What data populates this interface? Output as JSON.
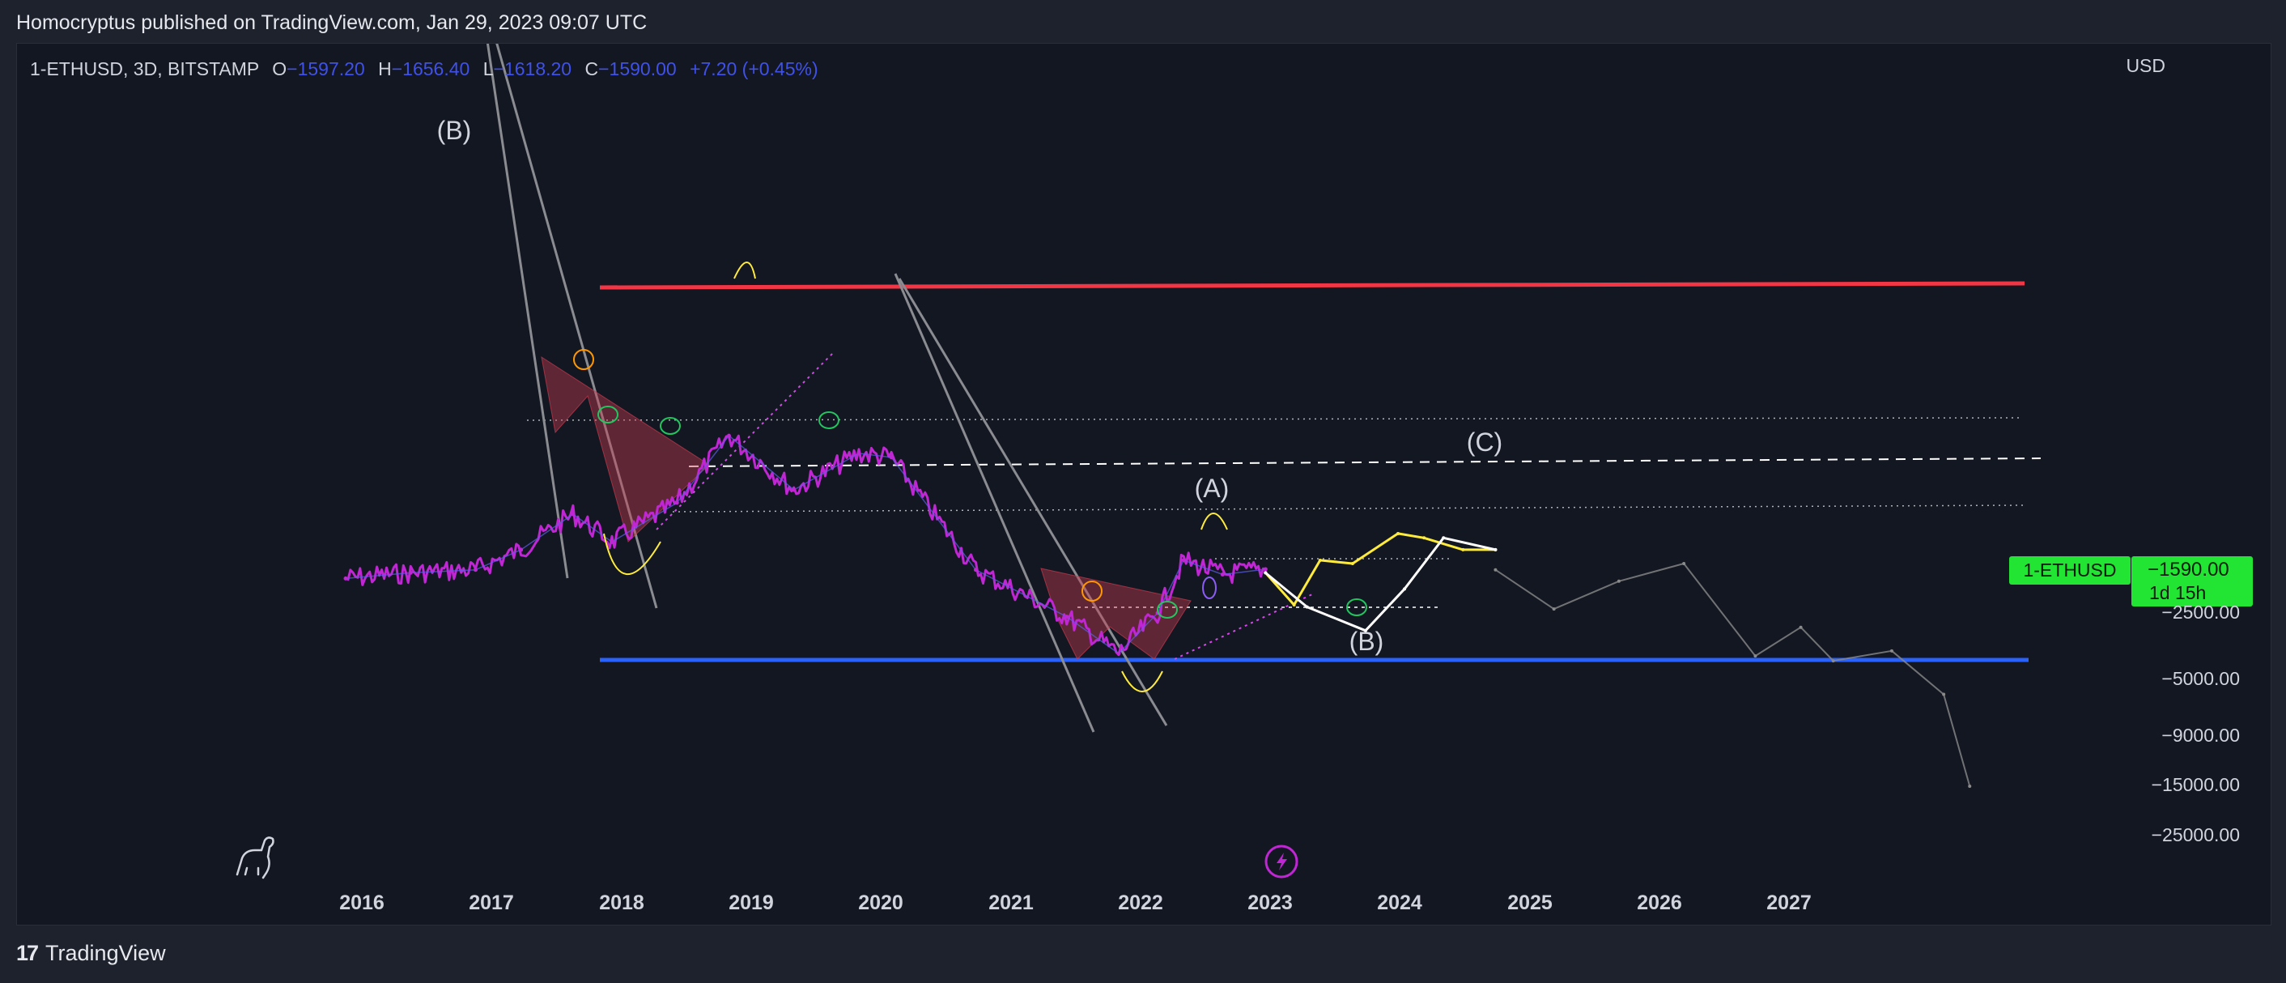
{
  "published": "Homocryptus published on TradingView.com, Jan 29, 2023 09:07 UTC",
  "footer": {
    "brand": "TradingView",
    "logo": "tradingview-logo"
  },
  "header": {
    "symbol": "1-ETHUSD, 3D, BITSTAMP",
    "o_label": "O",
    "o_value": "−1597.20",
    "h_label": "H",
    "h_value": "−1656.40",
    "l_label": "L",
    "l_value": "−1618.20",
    "c_label": "C",
    "c_value": "−1590.00",
    "change": "+7.20 (+0.45%)"
  },
  "currency": "USD",
  "badges": {
    "symbol": "1-ETHUSD",
    "price": "−1590.00",
    "countdown": "1d 15h"
  },
  "colors": {
    "background": "#131722",
    "candles": "#c026d3",
    "resistance": "#f23645",
    "support": "#2962ff",
    "price_badge": "#22e533",
    "projection_yellow": "#ffeb3b",
    "projection_white": "#ffffff",
    "projection_gray": "#8a8a8a"
  },
  "icons": {
    "dino": "dinosaur-icon",
    "lightning": "lightning-icon"
  },
  "chart_data": {
    "type": "line",
    "title": "",
    "xlabel": "",
    "ylabel": "",
    "x_ticks": [
      "2016",
      "2017",
      "2018",
      "2019",
      "2020",
      "2021",
      "2022",
      "2023",
      "2024",
      "2025",
      "2026",
      "2027"
    ],
    "y_ticks": [
      "−2500.00",
      "−5000.00",
      "−9000.00",
      "−15000.00",
      "−25000.00"
    ],
    "y_scale": "log",
    "grid": false,
    "annotations": [
      "(B)",
      "(A)",
      "(B)",
      "(C)"
    ],
    "series": [
      {
        "x": [
          2016.0,
          2016.5,
          2017.0,
          2017.35,
          2017.75,
          2018.05,
          2018.55,
          2018.95,
          2019.45,
          2019.95,
          2020.2,
          2020.85,
          2021.55,
          2021.95,
          2022.25,
          2022.45,
          2022.75,
          2023.08
        ],
        "y": [
          -1750,
          -1650,
          -1600,
          -1300,
          -900,
          -1200,
          -800,
          -400,
          -700,
          -480,
          -500,
          -1600,
          -2600,
          -3800,
          -2500,
          -1450,
          -1680,
          -1590
        ]
      },
      {
        "x": [
          2023.08,
          2023.3,
          2023.5,
          2023.75,
          2024.1,
          2024.3,
          2024.6,
          2024.85
        ],
        "y": [
          -1650,
          -2300,
          -1450,
          -1500,
          -1100,
          -1150,
          -1300,
          -1300
        ]
      },
      {
        "x": [
          2023.08,
          2023.4,
          2023.85,
          2024.15,
          2024.45,
          2024.85
        ],
        "y": [
          -1650,
          -2350,
          -3000,
          -1950,
          -1150,
          -1300
        ]
      },
      {
        "x": [
          2024.85,
          2025.3,
          2025.8,
          2026.3,
          2026.85,
          2027.2,
          2027.45,
          2027.9,
          2028.3,
          2028.5
        ],
        "y": [
          -1600,
          -2400,
          -1800,
          -1500,
          -3900,
          -2900,
          -4100,
          -3700,
          -5800,
          -15000
        ]
      }
    ]
  }
}
